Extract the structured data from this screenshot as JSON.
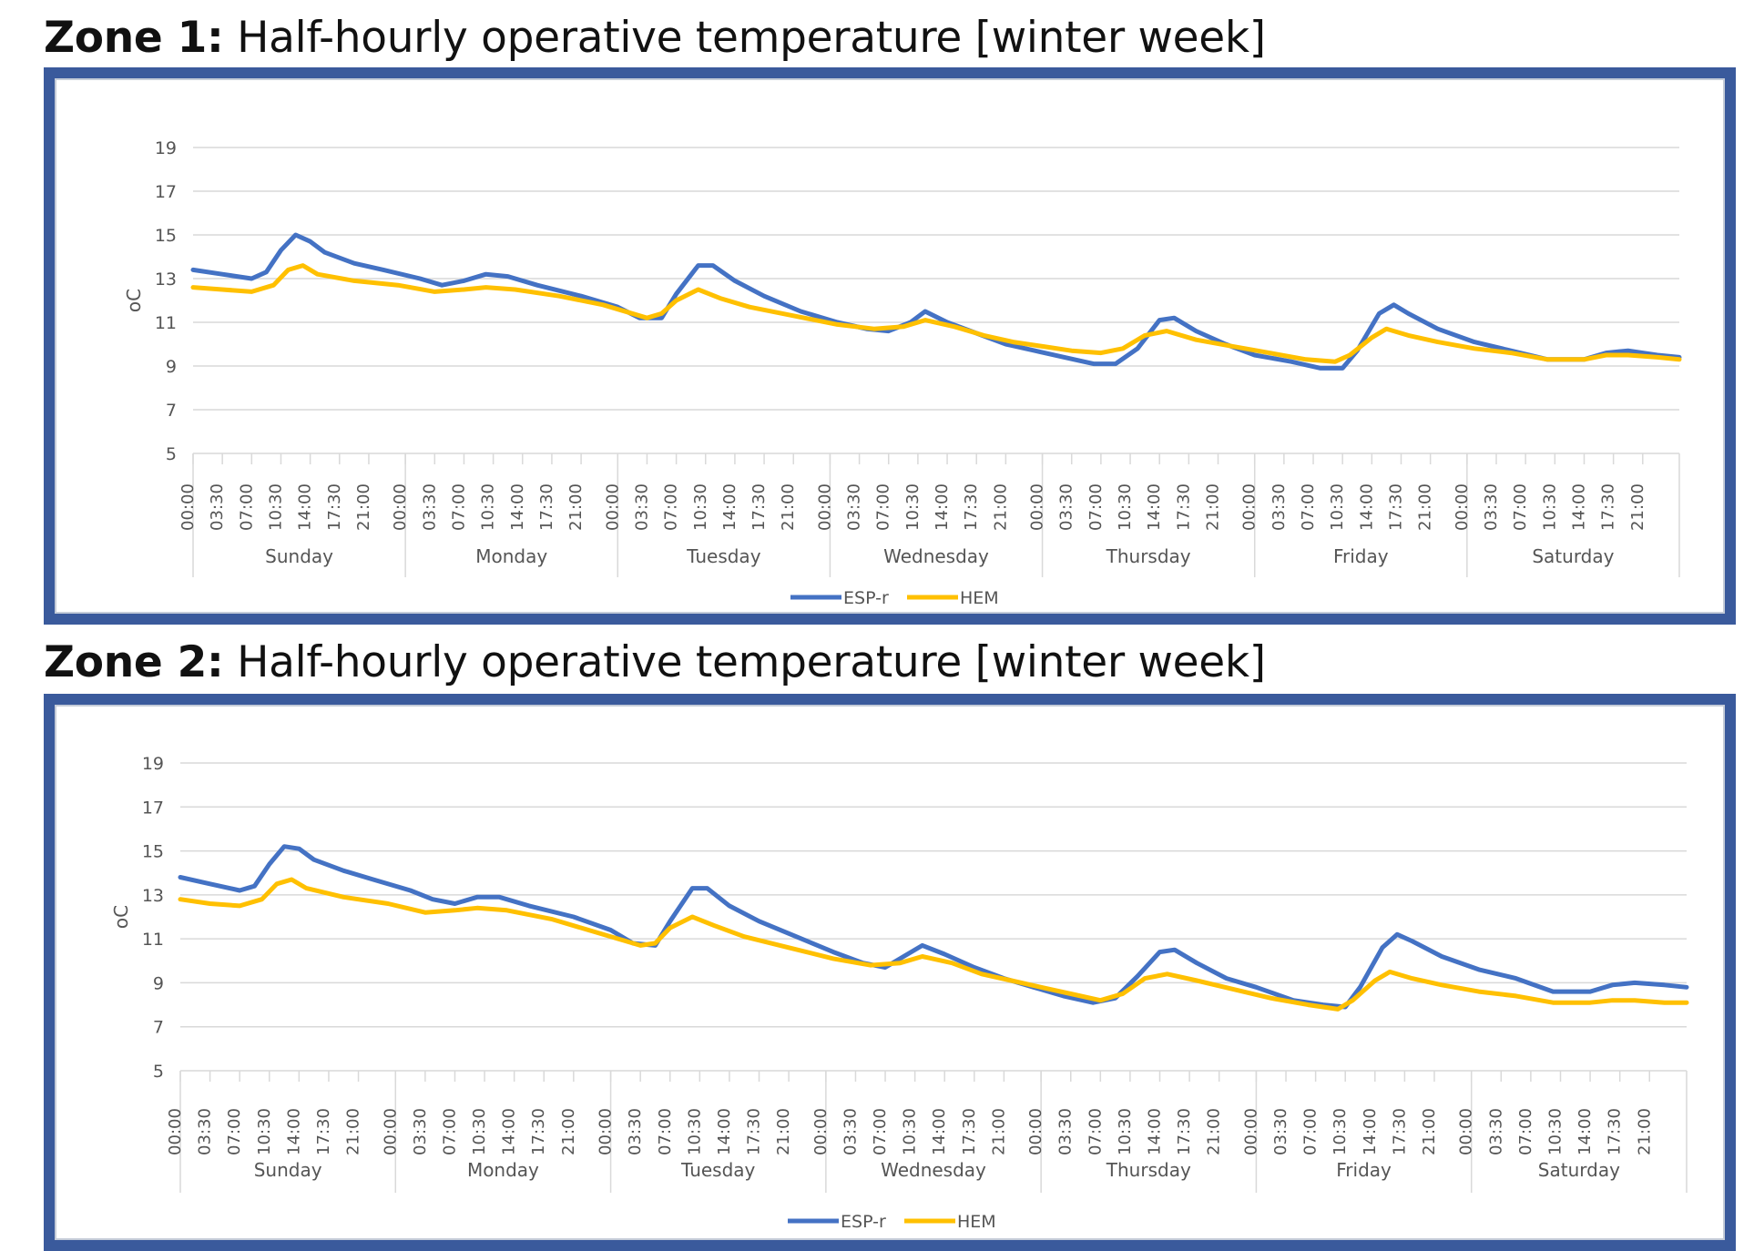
{
  "charts": [
    {
      "zone": "Zone 1:",
      "title": "Half-hourly operative temperature [winter week]"
    },
    {
      "zone": "Zone 2:",
      "title": "Half-hourly operative temperature [winter week]"
    }
  ],
  "colors": {
    "frame": "#3a5a9c",
    "esp": "#4472c4",
    "hem": "#ffc000",
    "grid": "#d9d9d9"
  },
  "chart_data": [
    {
      "type": "line",
      "title": "Zone 1: Half-hourly operative temperature [winter week]",
      "ylabel": "oC",
      "ylim": [
        5,
        19
      ],
      "yticks": [
        5,
        7,
        9,
        11,
        13,
        15,
        17,
        19
      ],
      "time_ticks": [
        "00:00",
        "03:30",
        "07:00",
        "10:30",
        "14:00",
        "17:30",
        "21:00"
      ],
      "days": [
        "Sunday",
        "Monday",
        "Tuesday",
        "Wednesday",
        "Thursday",
        "Friday",
        "Saturday"
      ],
      "grid": true,
      "legend_position": "bottom",
      "series": [
        {
          "name": "ESP-r",
          "color": "#4472c4",
          "values": [
            [
              0,
              13.4
            ],
            [
              4,
              13.2
            ],
            [
              8,
              13.0
            ],
            [
              10,
              13.3
            ],
            [
              12,
              14.3
            ],
            [
              14,
              15.0
            ],
            [
              16,
              14.7
            ],
            [
              18,
              14.2
            ],
            [
              22,
              13.7
            ],
            [
              26,
              13.4
            ],
            [
              31,
              13.0
            ],
            [
              34,
              12.7
            ],
            [
              37,
              12.9
            ],
            [
              40,
              13.2
            ],
            [
              43,
              13.1
            ],
            [
              47,
              12.7
            ],
            [
              53,
              12.2
            ],
            [
              58,
              11.7
            ],
            [
              61,
              11.2
            ],
            [
              64,
              11.2
            ],
            [
              66,
              12.3
            ],
            [
              69,
              13.6
            ],
            [
              71,
              13.6
            ],
            [
              74,
              12.9
            ],
            [
              78,
              12.2
            ],
            [
              83,
              11.5
            ],
            [
              88,
              11.0
            ],
            [
              92,
              10.7
            ],
            [
              95,
              10.6
            ],
            [
              98,
              11.0
            ],
            [
              100,
              11.5
            ],
            [
              103,
              11.0
            ],
            [
              107,
              10.5
            ],
            [
              111,
              10.0
            ],
            [
              115,
              9.7
            ],
            [
              119,
              9.4
            ],
            [
              123,
              9.1
            ],
            [
              126,
              9.1
            ],
            [
              129,
              9.8
            ],
            [
              132,
              11.1
            ],
            [
              134,
              11.2
            ],
            [
              137,
              10.6
            ],
            [
              141,
              10.0
            ],
            [
              145,
              9.5
            ],
            [
              150,
              9.2
            ],
            [
              154,
              8.9
            ],
            [
              157,
              8.9
            ],
            [
              159,
              9.7
            ],
            [
              162,
              11.4
            ],
            [
              164,
              11.8
            ],
            [
              166,
              11.4
            ],
            [
              170,
              10.7
            ],
            [
              175,
              10.1
            ],
            [
              180,
              9.7
            ],
            [
              185,
              9.3
            ],
            [
              190,
              9.3
            ],
            [
              193,
              9.6
            ],
            [
              196,
              9.7
            ],
            [
              200,
              9.5
            ],
            [
              203,
              9.4
            ]
          ]
        },
        {
          "name": "HEM",
          "color": "#ffc000",
          "values": [
            [
              0,
              12.6
            ],
            [
              4,
              12.5
            ],
            [
              8,
              12.4
            ],
            [
              11,
              12.7
            ],
            [
              13,
              13.4
            ],
            [
              15,
              13.6
            ],
            [
              17,
              13.2
            ],
            [
              22,
              12.9
            ],
            [
              28,
              12.7
            ],
            [
              33,
              12.4
            ],
            [
              37,
              12.5
            ],
            [
              40,
              12.6
            ],
            [
              44,
              12.5
            ],
            [
              50,
              12.2
            ],
            [
              56,
              11.8
            ],
            [
              62,
              11.2
            ],
            [
              64,
              11.4
            ],
            [
              66,
              12.0
            ],
            [
              69,
              12.5
            ],
            [
              72,
              12.1
            ],
            [
              76,
              11.7
            ],
            [
              82,
              11.3
            ],
            [
              88,
              10.9
            ],
            [
              93,
              10.7
            ],
            [
              97,
              10.8
            ],
            [
              100,
              11.1
            ],
            [
              104,
              10.8
            ],
            [
              108,
              10.4
            ],
            [
              112,
              10.1
            ],
            [
              116,
              9.9
            ],
            [
              120,
              9.7
            ],
            [
              124,
              9.6
            ],
            [
              127,
              9.8
            ],
            [
              130,
              10.4
            ],
            [
              133,
              10.6
            ],
            [
              137,
              10.2
            ],
            [
              142,
              9.9
            ],
            [
              147,
              9.6
            ],
            [
              152,
              9.3
            ],
            [
              156,
              9.2
            ],
            [
              158,
              9.5
            ],
            [
              161,
              10.3
            ],
            [
              163,
              10.7
            ],
            [
              166,
              10.4
            ],
            [
              170,
              10.1
            ],
            [
              175,
              9.8
            ],
            [
              180,
              9.6
            ],
            [
              185,
              9.3
            ],
            [
              190,
              9.3
            ],
            [
              193,
              9.5
            ],
            [
              196,
              9.5
            ],
            [
              200,
              9.4
            ],
            [
              203,
              9.3
            ]
          ]
        }
      ]
    },
    {
      "type": "line",
      "title": "Zone 2: Half-hourly operative temperature [winter week]",
      "ylabel": "oC",
      "ylim": [
        5,
        19
      ],
      "yticks": [
        5,
        7,
        9,
        11,
        13,
        15,
        17,
        19
      ],
      "time_ticks": [
        "00:00",
        "03:30",
        "07:00",
        "10:30",
        "14:00",
        "17:30",
        "21:00"
      ],
      "days": [
        "Sunday",
        "Monday",
        "Tuesday",
        "Wednesday",
        "Thursday",
        "Friday",
        "Saturday"
      ],
      "grid": true,
      "legend_position": "bottom",
      "series": [
        {
          "name": "ESP-r",
          "color": "#4472c4",
          "values": [
            [
              0,
              13.8
            ],
            [
              4,
              13.5
            ],
            [
              8,
              13.2
            ],
            [
              10,
              13.4
            ],
            [
              12,
              14.4
            ],
            [
              14,
              15.2
            ],
            [
              16,
              15.1
            ],
            [
              18,
              14.6
            ],
            [
              22,
              14.1
            ],
            [
              26,
              13.7
            ],
            [
              31,
              13.2
            ],
            [
              34,
              12.8
            ],
            [
              37,
              12.6
            ],
            [
              40,
              12.9
            ],
            [
              43,
              12.9
            ],
            [
              47,
              12.5
            ],
            [
              53,
              12.0
            ],
            [
              58,
              11.4
            ],
            [
              61,
              10.8
            ],
            [
              64,
              10.7
            ],
            [
              66,
              11.8
            ],
            [
              69,
              13.3
            ],
            [
              71,
              13.3
            ],
            [
              74,
              12.5
            ],
            [
              78,
              11.8
            ],
            [
              83,
              11.1
            ],
            [
              88,
              10.4
            ],
            [
              92,
              9.9
            ],
            [
              95,
              9.7
            ],
            [
              98,
              10.3
            ],
            [
              100,
              10.7
            ],
            [
              103,
              10.3
            ],
            [
              107,
              9.7
            ],
            [
              111,
              9.2
            ],
            [
              115,
              8.8
            ],
            [
              119,
              8.4
            ],
            [
              123,
              8.1
            ],
            [
              126,
              8.3
            ],
            [
              129,
              9.3
            ],
            [
              132,
              10.4
            ],
            [
              134,
              10.5
            ],
            [
              137,
              9.9
            ],
            [
              141,
              9.2
            ],
            [
              145,
              8.8
            ],
            [
              150,
              8.2
            ],
            [
              154,
              8.0
            ],
            [
              157,
              7.9
            ],
            [
              159,
              8.8
            ],
            [
              162,
              10.6
            ],
            [
              164,
              11.2
            ],
            [
              166,
              10.9
            ],
            [
              170,
              10.2
            ],
            [
              175,
              9.6
            ],
            [
              180,
              9.2
            ],
            [
              185,
              8.6
            ],
            [
              190,
              8.6
            ],
            [
              193,
              8.9
            ],
            [
              196,
              9.0
            ],
            [
              200,
              8.9
            ],
            [
              203,
              8.8
            ]
          ]
        },
        {
          "name": "HEM",
          "color": "#ffc000",
          "values": [
            [
              0,
              12.8
            ],
            [
              4,
              12.6
            ],
            [
              8,
              12.5
            ],
            [
              11,
              12.8
            ],
            [
              13,
              13.5
            ],
            [
              15,
              13.7
            ],
            [
              17,
              13.3
            ],
            [
              22,
              12.9
            ],
            [
              28,
              12.6
            ],
            [
              33,
              12.2
            ],
            [
              37,
              12.3
            ],
            [
              40,
              12.4
            ],
            [
              44,
              12.3
            ],
            [
              50,
              11.9
            ],
            [
              56,
              11.3
            ],
            [
              62,
              10.7
            ],
            [
              64,
              10.8
            ],
            [
              66,
              11.5
            ],
            [
              69,
              12.0
            ],
            [
              72,
              11.6
            ],
            [
              76,
              11.1
            ],
            [
              82,
              10.6
            ],
            [
              88,
              10.1
            ],
            [
              93,
              9.8
            ],
            [
              97,
              9.9
            ],
            [
              100,
              10.2
            ],
            [
              104,
              9.9
            ],
            [
              108,
              9.4
            ],
            [
              112,
              9.1
            ],
            [
              116,
              8.8
            ],
            [
              120,
              8.5
            ],
            [
              124,
              8.2
            ],
            [
              127,
              8.5
            ],
            [
              130,
              9.2
            ],
            [
              133,
              9.4
            ],
            [
              137,
              9.1
            ],
            [
              142,
              8.7
            ],
            [
              147,
              8.3
            ],
            [
              152,
              8.0
            ],
            [
              156,
              7.8
            ],
            [
              158,
              8.2
            ],
            [
              161,
              9.1
            ],
            [
              163,
              9.5
            ],
            [
              166,
              9.2
            ],
            [
              170,
              8.9
            ],
            [
              175,
              8.6
            ],
            [
              180,
              8.4
            ],
            [
              185,
              8.1
            ],
            [
              190,
              8.1
            ],
            [
              193,
              8.2
            ],
            [
              196,
              8.2
            ],
            [
              200,
              8.1
            ],
            [
              203,
              8.1
            ]
          ]
        }
      ]
    }
  ]
}
